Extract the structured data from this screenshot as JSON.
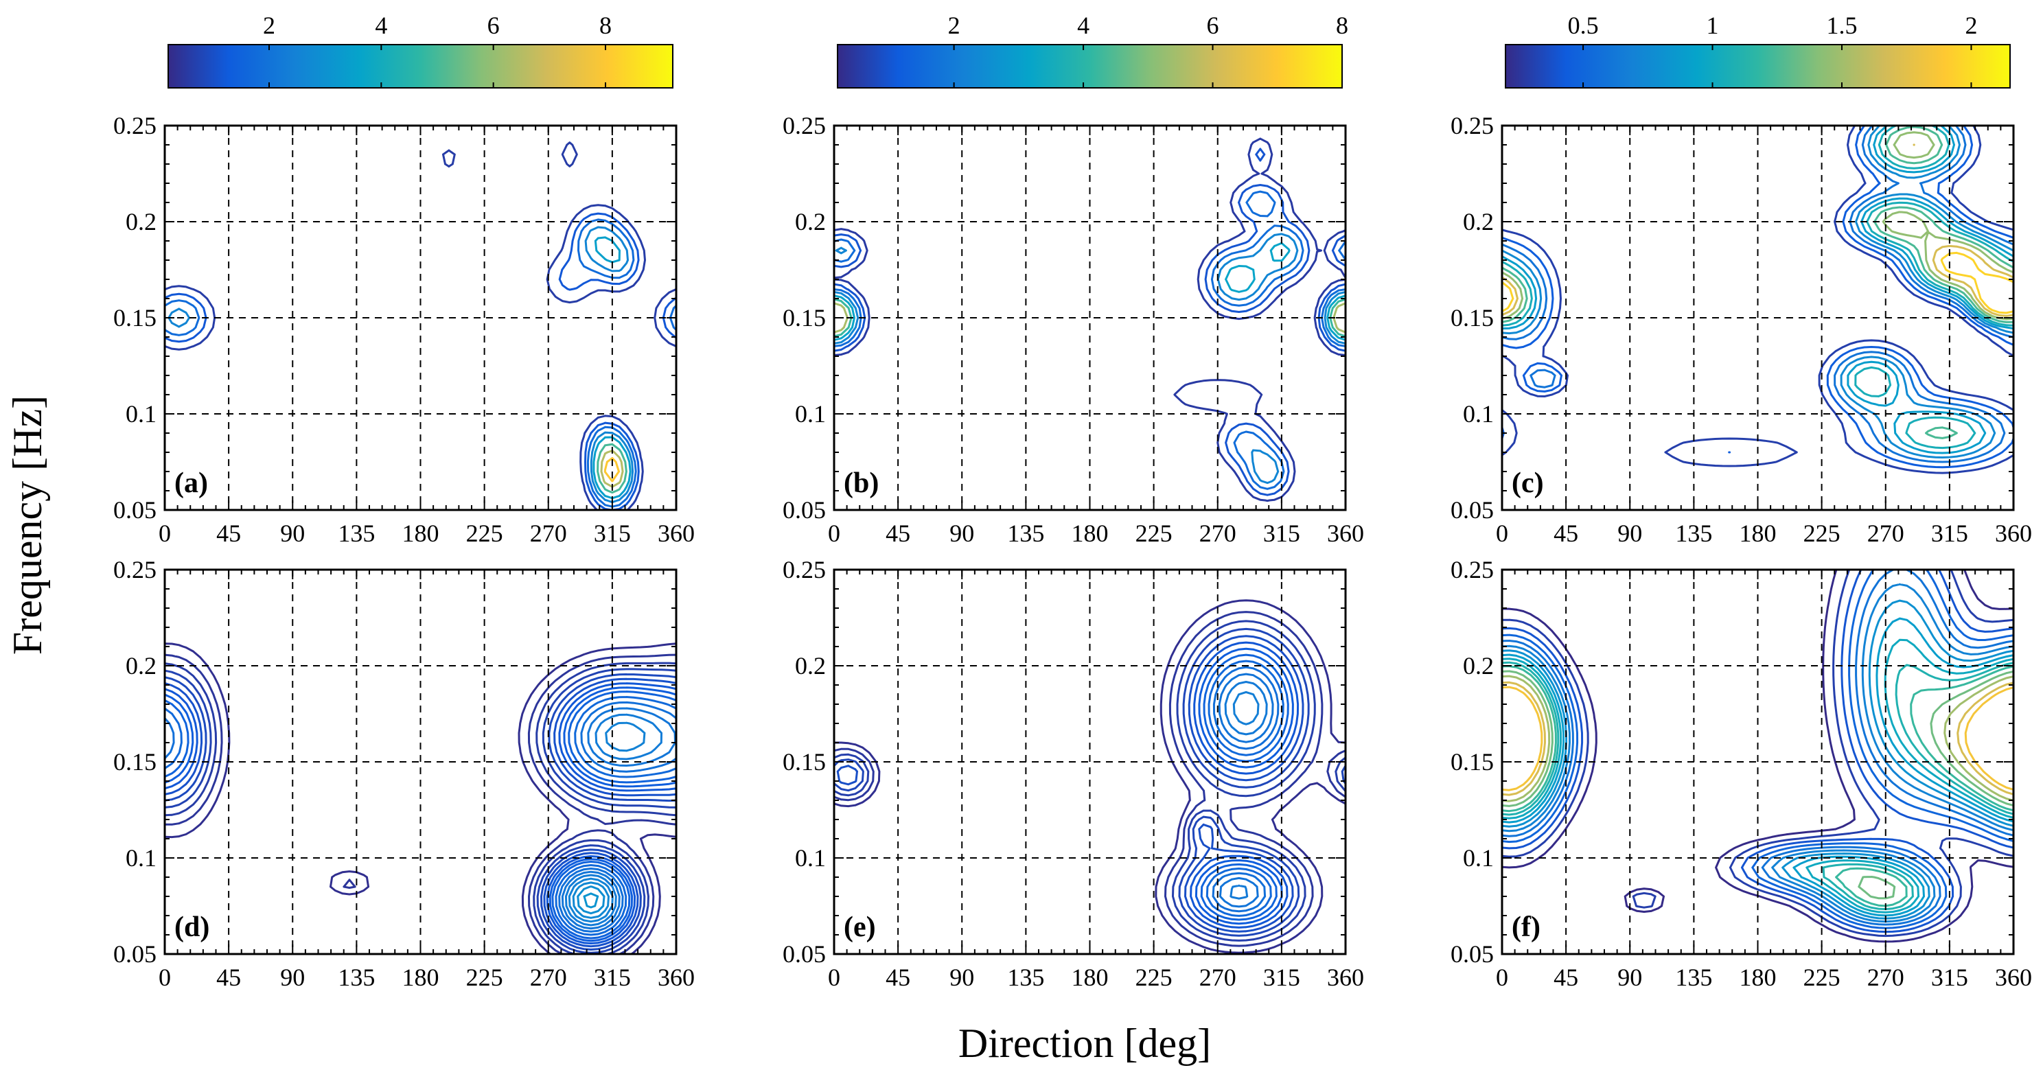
{
  "figure": {
    "xlabel": "Direction [deg]",
    "ylabel": "Frequency [Hz]"
  },
  "colorbars": [
    {
      "name": "colorbar-left",
      "ticks": [
        "2",
        "4",
        "6",
        "8"
      ],
      "tick_values": [
        2,
        4,
        6,
        8
      ],
      "vmin": 0.2,
      "vmax": 9.2
    },
    {
      "name": "colorbar-middle",
      "ticks": [
        "2",
        "4",
        "6",
        "8"
      ],
      "tick_values": [
        2,
        4,
        6,
        8
      ],
      "vmin": 0.2,
      "vmax": 8.0
    },
    {
      "name": "colorbar-right",
      "ticks": [
        "0.5",
        "1",
        "1.5",
        "2"
      ],
      "tick_values": [
        0.5,
        1,
        1.5,
        2
      ],
      "vmin": 0.2,
      "vmax": 2.15
    }
  ],
  "chart_data": [
    {
      "type": "contour",
      "panel": "(a)",
      "colorbar": 0,
      "x_ticks": [
        "0",
        "45",
        "90",
        "135",
        "180",
        "225",
        "270",
        "315",
        "360"
      ],
      "y_ticks": [
        "0.05",
        "0.1",
        "0.15",
        "0.2",
        "0.25"
      ],
      "xlim": [
        0,
        360
      ],
      "ylim": [
        0.05,
        0.25
      ],
      "grid": true,
      "peaks": [
        {
          "dir": 10,
          "freq": 0.15,
          "level": 3.0,
          "sdir": 14,
          "sfreq": 0.009
        },
        {
          "dir": 305,
          "freq": 0.19,
          "level": 3.2,
          "sdir": 12,
          "sfreq": 0.01
        },
        {
          "dir": 320,
          "freq": 0.18,
          "level": 2.6,
          "sdir": 10,
          "sfreq": 0.009
        },
        {
          "dir": 285,
          "freq": 0.17,
          "level": 1.4,
          "sdir": 12,
          "sfreq": 0.009
        },
        {
          "dir": 315,
          "freq": 0.07,
          "level": 9.0,
          "sdir": 9,
          "sfreq": 0.01
        },
        {
          "dir": 310,
          "freq": 0.085,
          "level": 2.0,
          "sdir": 9,
          "sfreq": 0.008
        },
        {
          "dir": 200,
          "freq": 0.233,
          "level": 1.0,
          "sdir": 5,
          "sfreq": 0.004
        },
        {
          "dir": 285,
          "freq": 0.235,
          "level": 1.0,
          "sdir": 5,
          "sfreq": 0.006
        }
      ],
      "levels": [
        0.6,
        1.2,
        1.8,
        2.6,
        3.5,
        5,
        6.5,
        8
      ]
    },
    {
      "type": "contour",
      "panel": "(b)",
      "colorbar": 1,
      "x_ticks": [
        "0",
        "45",
        "90",
        "135",
        "180",
        "225",
        "270",
        "315",
        "360"
      ],
      "y_ticks": [
        "0.05",
        "0.1",
        "0.15",
        "0.2",
        "0.25"
      ],
      "xlim": [
        0,
        360
      ],
      "ylim": [
        0.05,
        0.25
      ],
      "grid": true,
      "peaks": [
        {
          "dir": 3,
          "freq": 0.15,
          "level": 5.0,
          "sdir": 10,
          "sfreq": 0.008
        },
        {
          "dir": 5,
          "freq": 0.185,
          "level": 2.5,
          "sdir": 10,
          "sfreq": 0.006
        },
        {
          "dir": 285,
          "freq": 0.17,
          "level": 4.0,
          "sdir": 14,
          "sfreq": 0.01
        },
        {
          "dir": 315,
          "freq": 0.185,
          "level": 3.5,
          "sdir": 12,
          "sfreq": 0.009
        },
        {
          "dir": 358,
          "freq": 0.15,
          "level": 4.0,
          "sdir": 8,
          "sfreq": 0.008
        },
        {
          "dir": 300,
          "freq": 0.21,
          "level": 2.2,
          "sdir": 12,
          "sfreq": 0.007
        },
        {
          "dir": 305,
          "freq": 0.07,
          "level": 3.0,
          "sdir": 10,
          "sfreq": 0.008
        },
        {
          "dir": 290,
          "freq": 0.085,
          "level": 2.0,
          "sdir": 12,
          "sfreq": 0.008
        },
        {
          "dir": 270,
          "freq": 0.11,
          "level": 0.9,
          "sdir": 28,
          "sfreq": 0.007
        },
        {
          "dir": 300,
          "freq": 0.235,
          "level": 1.2,
          "sdir": 6,
          "sfreq": 0.006
        }
      ],
      "levels": [
        0.5,
        1.0,
        1.6,
        2.3,
        3.2,
        4.2,
        5.5
      ]
    },
    {
      "type": "contour",
      "panel": "(c)",
      "colorbar": 2,
      "x_ticks": [
        "0",
        "45",
        "90",
        "135",
        "180",
        "225",
        "270",
        "315",
        "360"
      ],
      "y_ticks": [
        "0.05",
        "0.1",
        "0.15",
        "0.2",
        "0.25"
      ],
      "xlim": [
        0,
        360
      ],
      "ylim": [
        0.05,
        0.25
      ],
      "grid": true,
      "peaks": [
        {
          "dir": 290,
          "freq": 0.24,
          "level": 1.7,
          "sdir": 25,
          "sfreq": 0.012
        },
        {
          "dir": 280,
          "freq": 0.2,
          "level": 1.6,
          "sdir": 25,
          "sfreq": 0.01
        },
        {
          "dir": 320,
          "freq": 0.178,
          "level": 2.1,
          "sdir": 22,
          "sfreq": 0.011
        },
        {
          "dir": 350,
          "freq": 0.16,
          "level": 2.0,
          "sdir": 14,
          "sfreq": 0.008
        },
        {
          "dir": 260,
          "freq": 0.118,
          "level": 1.2,
          "sdir": 22,
          "sfreq": 0.012
        },
        {
          "dir": 310,
          "freq": 0.09,
          "level": 1.3,
          "sdir": 35,
          "sfreq": 0.012
        },
        {
          "dir": 10,
          "freq": 0.16,
          "level": 1.0,
          "sdir": 20,
          "sfreq": 0.02
        },
        {
          "dir": 30,
          "freq": 0.118,
          "level": 0.7,
          "sdir": 12,
          "sfreq": 0.006
        },
        {
          "dir": 160,
          "freq": 0.08,
          "level": 0.45,
          "sdir": 50,
          "sfreq": 0.008
        }
      ],
      "levels": [
        0.3,
        0.45,
        0.6,
        0.75,
        0.9,
        1.05,
        1.25,
        1.45,
        1.7,
        1.95
      ]
    },
    {
      "type": "contour",
      "panel": "(d)",
      "colorbar": 0,
      "x_ticks": [
        "0",
        "45",
        "90",
        "135",
        "180",
        "225",
        "270",
        "315",
        "360"
      ],
      "y_ticks": [
        "0.05",
        "0.1",
        "0.15",
        "0.2",
        "0.25"
      ],
      "xlim": [
        0,
        360
      ],
      "ylim": [
        0.05,
        0.25
      ],
      "grid": true,
      "peaks": [
        {
          "dir": 300,
          "freq": 0.078,
          "level": 3.2,
          "sdir": 22,
          "sfreq": 0.016
        },
        {
          "dir": 320,
          "freq": 0.163,
          "level": 2.6,
          "sdir": 34,
          "sfreq": 0.022
        },
        {
          "dir": 10,
          "freq": 0.16,
          "level": 0.9,
          "sdir": 20,
          "sfreq": 0.03
        },
        {
          "dir": 130,
          "freq": 0.087,
          "level": 0.5,
          "sdir": 14,
          "sfreq": 0.006
        }
      ],
      "levels": [
        0.3,
        0.45,
        0.6,
        0.75,
        0.9,
        1.05,
        1.2,
        1.35,
        1.5,
        1.7,
        1.9,
        2.1,
        2.3,
        2.5,
        2.7,
        2.9,
        3.1
      ]
    },
    {
      "type": "contour",
      "panel": "(e)",
      "colorbar": 1,
      "x_ticks": [
        "0",
        "45",
        "90",
        "135",
        "180",
        "225",
        "270",
        "315",
        "360"
      ],
      "y_ticks": [
        "0.05",
        "0.1",
        "0.15",
        "0.2",
        "0.25"
      ],
      "xlim": [
        0,
        360
      ],
      "ylim": [
        0.05,
        0.25
      ],
      "grid": true,
      "peaks": [
        {
          "dir": 290,
          "freq": 0.178,
          "level": 2.2,
          "sdir": 30,
          "sfreq": 0.028
        },
        {
          "dir": 285,
          "freq": 0.082,
          "level": 2.0,
          "sdir": 30,
          "sfreq": 0.016
        },
        {
          "dir": 10,
          "freq": 0.143,
          "level": 1.0,
          "sdir": 14,
          "sfreq": 0.01
        },
        {
          "dir": 260,
          "freq": 0.115,
          "level": 0.7,
          "sdir": 10,
          "sfreq": 0.008
        }
      ],
      "levels": [
        0.3,
        0.45,
        0.6,
        0.75,
        0.9,
        1.05,
        1.2,
        1.35,
        1.5,
        1.65,
        1.8,
        1.95,
        2.1
      ]
    },
    {
      "type": "contour",
      "panel": "(f)",
      "colorbar": 2,
      "x_ticks": [
        "0",
        "45",
        "90",
        "135",
        "180",
        "225",
        "270",
        "315",
        "360"
      ],
      "y_ticks": [
        "0.05",
        "0.1",
        "0.15",
        "0.2",
        "0.25"
      ],
      "xlim": [
        0,
        360
      ],
      "ylim": [
        0.05,
        0.25
      ],
      "grid": true,
      "peaks": [
        {
          "dir": 350,
          "freq": 0.162,
          "level": 1.9,
          "sdir": 35,
          "sfreq": 0.026
        },
        {
          "dir": 10,
          "freq": 0.162,
          "level": 1.2,
          "sdir": 20,
          "sfreq": 0.032
        },
        {
          "dir": 270,
          "freq": 0.08,
          "level": 1.2,
          "sdir": 30,
          "sfreq": 0.012
        },
        {
          "dir": 220,
          "freq": 0.095,
          "level": 0.9,
          "sdir": 40,
          "sfreq": 0.01
        },
        {
          "dir": 280,
          "freq": 0.2,
          "level": 1.0,
          "sdir": 30,
          "sfreq": 0.05
        },
        {
          "dir": 100,
          "freq": 0.078,
          "level": 0.4,
          "sdir": 12,
          "sfreq": 0.005
        }
      ],
      "levels": [
        0.2,
        0.3,
        0.4,
        0.5,
        0.6,
        0.7,
        0.8,
        0.9,
        1.0,
        1.1,
        1.2,
        1.35,
        1.5,
        1.7,
        1.85
      ]
    }
  ]
}
